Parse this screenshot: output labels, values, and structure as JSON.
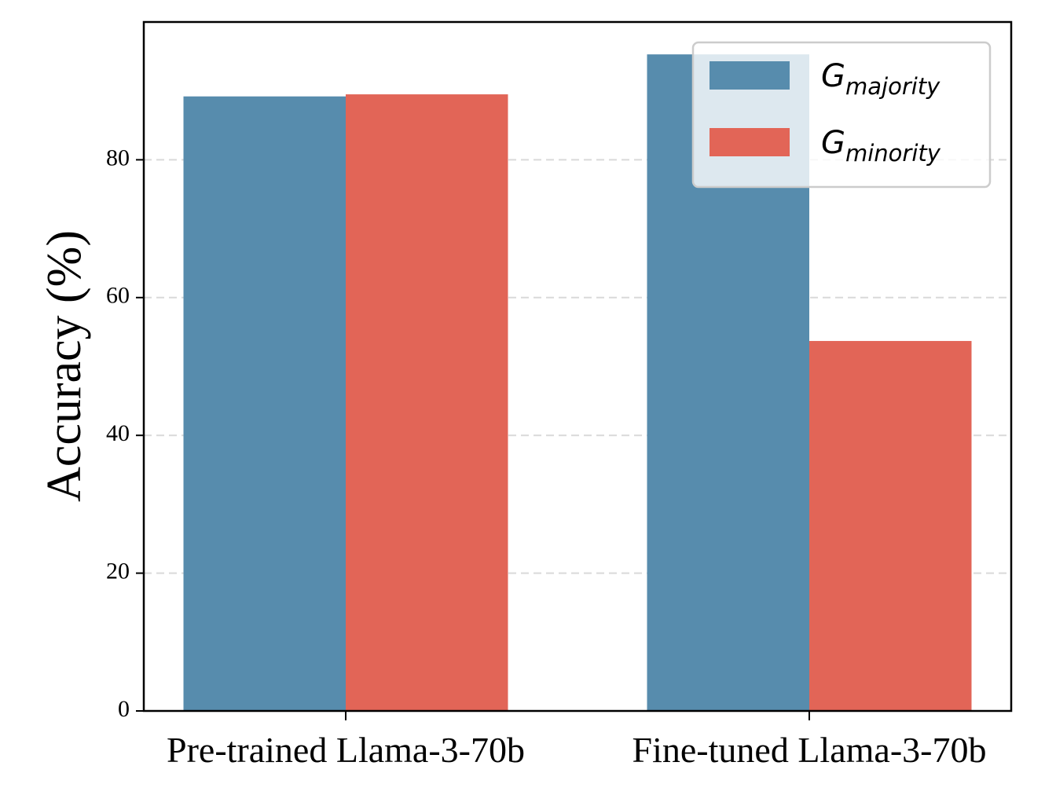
{
  "chart_data": {
    "type": "bar",
    "title": "",
    "xlabel": "",
    "ylabel": "Accuracy (%)",
    "categories": [
      "Pre-trained Llama-3-70b",
      "Fine-tuned Llama-3-70b"
    ],
    "series": [
      {
        "name": "G_majority",
        "main": "G",
        "sub": "majority",
        "color": "#578CAD",
        "values": [
          89.2,
          95.3
        ]
      },
      {
        "name": "G_minority",
        "main": "G",
        "sub": "minority",
        "color": "#E26557",
        "values": [
          89.5,
          53.7
        ]
      }
    ],
    "ylim": [
      0,
      100
    ],
    "yticks": [
      0,
      20,
      40,
      60,
      80
    ],
    "grid": true,
    "legend_position": "top-right"
  }
}
